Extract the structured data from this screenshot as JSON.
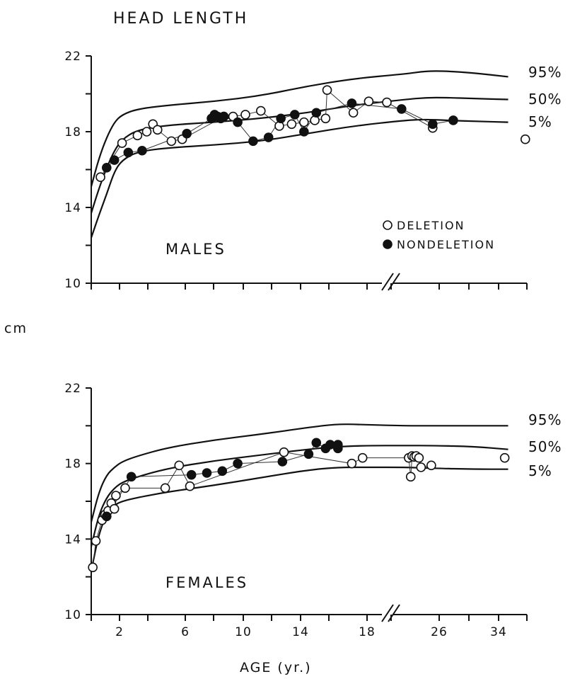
{
  "title": "HEAD LENGTH",
  "ylabel": "cm",
  "xlabel": "AGE (yr.)",
  "legend": {
    "deletion": "DELETION",
    "nondeletion": "NONDELETION"
  },
  "chart_data": [
    {
      "type": "scatter",
      "panel": "MALES",
      "ylim": [
        10,
        22
      ],
      "yticks": [
        "10",
        "14",
        "18",
        "22"
      ],
      "xticks": [],
      "axis_break": true,
      "percentiles": [
        {
          "name": "95%",
          "points": [
            [
              0,
              15.1
            ],
            [
              0.5,
              16.6
            ],
            [
              1,
              17.7
            ],
            [
              1.5,
              18.5
            ],
            [
              2,
              18.9
            ],
            [
              3,
              19.2
            ],
            [
              5,
              19.4
            ],
            [
              8,
              19.6
            ],
            [
              11,
              19.9
            ],
            [
              14,
              20.4
            ],
            [
              17,
              20.8
            ],
            [
              20,
              21.05
            ],
            [
              23,
              21.2
            ],
            [
              26,
              21.2
            ],
            [
              30,
              21.1
            ],
            [
              35,
              20.9
            ]
          ]
        },
        {
          "name": "50%",
          "points": [
            [
              0,
              13.7
            ],
            [
              0.5,
              15.0
            ],
            [
              1,
              16.1
            ],
            [
              1.5,
              17.0
            ],
            [
              2,
              17.6
            ],
            [
              3,
              18.1
            ],
            [
              5,
              18.35
            ],
            [
              8,
              18.5
            ],
            [
              11,
              18.7
            ],
            [
              14,
              19.0
            ],
            [
              17,
              19.4
            ],
            [
              20,
              19.7
            ],
            [
              23,
              19.8
            ],
            [
              26,
              19.8
            ],
            [
              30,
              19.75
            ],
            [
              35,
              19.7
            ]
          ]
        },
        {
          "name": "5%",
          "points": [
            [
              0,
              12.4
            ],
            [
              0.5,
              13.6
            ],
            [
              1,
              14.7
            ],
            [
              1.5,
              15.9
            ],
            [
              2,
              16.5
            ],
            [
              3,
              16.95
            ],
            [
              5,
              17.15
            ],
            [
              8,
              17.3
            ],
            [
              11,
              17.5
            ],
            [
              14,
              17.9
            ],
            [
              17,
              18.3
            ],
            [
              20,
              18.6
            ],
            [
              23,
              18.65
            ],
            [
              26,
              18.6
            ],
            [
              30,
              18.55
            ],
            [
              35,
              18.5
            ]
          ]
        }
      ],
      "series": [
        {
          "name": "DELETION",
          "points": [
            [
              0.6,
              15.6
            ],
            [
              2.0,
              17.4
            ],
            [
              3.0,
              17.8
            ],
            [
              3.6,
              18.0
            ],
            [
              4.0,
              18.4
            ],
            [
              4.3,
              18.1
            ],
            [
              5.2,
              17.5
            ],
            [
              5.9,
              17.6
            ],
            [
              8.6,
              18.8
            ],
            [
              9.2,
              18.8
            ],
            [
              10.0,
              18.9
            ],
            [
              11.0,
              19.1
            ],
            [
              12.2,
              18.3
            ],
            [
              13.0,
              18.4
            ],
            [
              13.8,
              18.5
            ],
            [
              14.5,
              18.6
            ],
            [
              15.2,
              18.7
            ],
            [
              15.3,
              20.2
            ],
            [
              17.0,
              19.0
            ],
            [
              18.0,
              19.6
            ],
            [
              19.0,
              19.55
            ],
            [
              24.0,
              18.2
            ],
            [
              37.5,
              17.6
            ]
          ]
        },
        {
          "name": "NONDELETION",
          "points": [
            [
              1.0,
              16.1
            ],
            [
              1.5,
              16.5
            ],
            [
              2.4,
              16.9
            ],
            [
              3.3,
              17.0
            ],
            [
              6.2,
              17.9
            ],
            [
              7.8,
              18.7
            ],
            [
              8.0,
              18.9
            ],
            [
              8.2,
              18.8
            ],
            [
              8.4,
              18.7
            ],
            [
              8.6,
              18.8
            ],
            [
              9.5,
              18.5
            ],
            [
              10.5,
              17.5
            ],
            [
              11.5,
              17.7
            ],
            [
              12.3,
              18.7
            ],
            [
              13.2,
              18.9
            ],
            [
              13.8,
              18.0
            ],
            [
              14.6,
              19.0
            ],
            [
              16.9,
              19.5
            ],
            [
              19.8,
              19.2
            ],
            [
              24.0,
              18.4
            ],
            [
              27.0,
              18.6
            ]
          ]
        }
      ]
    },
    {
      "type": "scatter",
      "panel": "FEMALES",
      "ylim": [
        10,
        22
      ],
      "yticks": [
        "10",
        "14",
        "18",
        "22"
      ],
      "xticks": [
        "2",
        "6",
        "10",
        "14",
        "18",
        "26",
        "34"
      ],
      "axis_break": true,
      "percentiles": [
        {
          "name": "95%",
          "points": [
            [
              0,
              14.9
            ],
            [
              0.5,
              16.5
            ],
            [
              1,
              17.4
            ],
            [
              1.5,
              17.8
            ],
            [
              2,
              18.1
            ],
            [
              3,
              18.4
            ],
            [
              5,
              18.85
            ],
            [
              8,
              19.25
            ],
            [
              11,
              19.55
            ],
            [
              14,
              19.9
            ],
            [
              16,
              20.1
            ],
            [
              18,
              20.05
            ],
            [
              20,
              20.0
            ],
            [
              24,
              20.0
            ],
            [
              30,
              20.0
            ],
            [
              35,
              20.0
            ]
          ]
        },
        {
          "name": "50%",
          "points": [
            [
              0,
              13.6
            ],
            [
              0.5,
              15.3
            ],
            [
              1,
              16.2
            ],
            [
              1.5,
              16.7
            ],
            [
              2,
              17.0
            ],
            [
              3,
              17.3
            ],
            [
              5,
              17.75
            ],
            [
              8,
              18.15
            ],
            [
              11,
              18.45
            ],
            [
              14,
              18.75
            ],
            [
              16,
              18.9
            ],
            [
              18,
              18.95
            ],
            [
              20,
              18.95
            ],
            [
              24,
              18.95
            ],
            [
              30,
              18.9
            ],
            [
              35,
              18.75
            ]
          ]
        },
        {
          "name": "5%",
          "points": [
            [
              0,
              12.3
            ],
            [
              0.5,
              14.3
            ],
            [
              1,
              15.3
            ],
            [
              1.5,
              15.8
            ],
            [
              2,
              16.0
            ],
            [
              3,
              16.2
            ],
            [
              5,
              16.5
            ],
            [
              8,
              16.85
            ],
            [
              11,
              17.25
            ],
            [
              14,
              17.65
            ],
            [
              16,
              17.8
            ],
            [
              18,
              17.8
            ],
            [
              20,
              17.8
            ],
            [
              24,
              17.75
            ],
            [
              30,
              17.7
            ],
            [
              35,
              17.7
            ]
          ]
        }
      ],
      "series": [
        {
          "name": "DELETION",
          "points": [
            [
              0.1,
              12.5
            ],
            [
              0.3,
              13.9
            ],
            [
              0.7,
              15.0
            ],
            [
              0.9,
              15.3
            ],
            [
              1.1,
              15.5
            ],
            [
              1.3,
              15.9
            ],
            [
              1.5,
              15.6
            ],
            [
              1.6,
              16.3
            ],
            [
              2.2,
              16.7
            ],
            [
              4.8,
              16.7
            ],
            [
              5.7,
              17.9
            ],
            [
              6.4,
              16.8
            ],
            [
              12.5,
              18.6
            ],
            [
              16.9,
              18.0
            ],
            [
              17.6,
              18.3
            ],
            [
              20.5,
              18.3
            ],
            [
              20.8,
              17.3
            ],
            [
              21.0,
              18.4
            ],
            [
              21.3,
              18.35
            ],
            [
              21.6,
              18.4
            ],
            [
              22.0,
              18.3
            ],
            [
              22.3,
              17.8
            ],
            [
              23.8,
              17.9
            ],
            [
              34.5,
              18.3
            ]
          ]
        },
        {
          "name": "NONDELETION",
          "points": [
            [
              1.0,
              15.2
            ],
            [
              2.6,
              17.3
            ],
            [
              6.5,
              17.4
            ],
            [
              7.5,
              17.5
            ],
            [
              8.5,
              17.6
            ],
            [
              9.5,
              18.0
            ],
            [
              12.4,
              18.1
            ],
            [
              14.1,
              18.5
            ],
            [
              14.6,
              19.1
            ],
            [
              15.2,
              18.8
            ],
            [
              15.5,
              19.0
            ],
            [
              16.0,
              19.0
            ],
            [
              16.0,
              18.8
            ]
          ]
        }
      ]
    }
  ]
}
